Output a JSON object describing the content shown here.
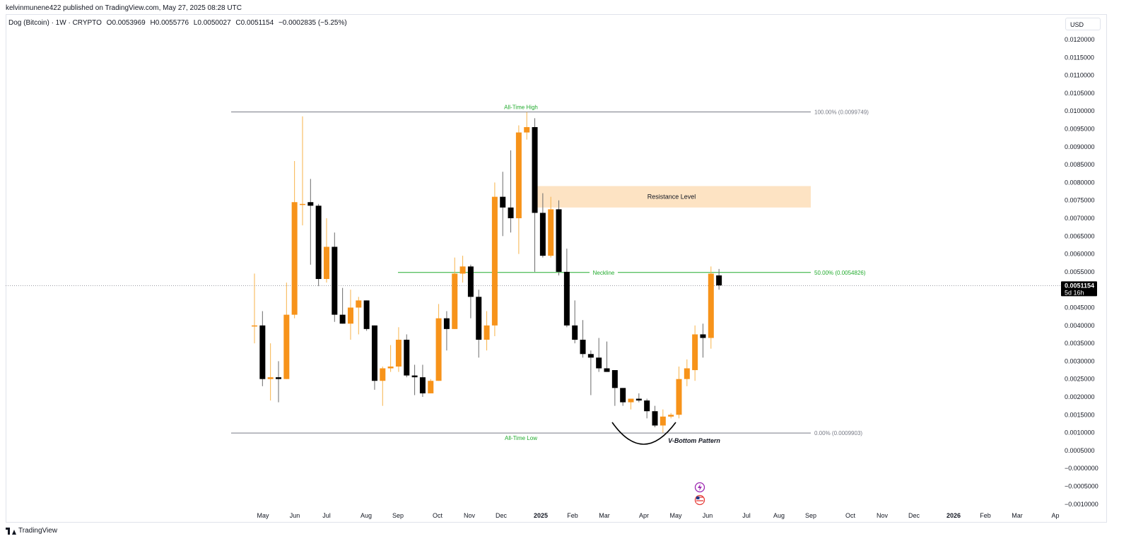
{
  "header": {
    "publisher_line": "kelvinmunene422 published on TradingView.com, May 27, 2025 08:28 UTC",
    "symbol": "Dog (Bitcoin) · 1W · CRYPTO",
    "open": "O0.0053969",
    "high": "H0.0055776",
    "low": "L0.0050027",
    "close": "C0.0051154",
    "change": "−0.0002835 (−5.25%)"
  },
  "currency_label": "USD",
  "footer": {
    "brand": "TradingView"
  },
  "colors": {
    "bull": "#f7931a",
    "bear": "#000000",
    "green": "#22ab2e",
    "grid_line": "#787b86",
    "zone": "#fde3c3"
  },
  "chart_data": {
    "type": "candlestick",
    "y_axis_ticks": [
      "0.0120000",
      "0.0115000",
      "0.0110000",
      "0.0105000",
      "0.0100000",
      "0.0095000",
      "0.0090000",
      "0.0085000",
      "0.0080000",
      "0.0075000",
      "0.0070000",
      "0.0065000",
      "0.0060000",
      "0.0055000",
      "0.0050000",
      "0.0045000",
      "0.0040000",
      "0.0035000",
      "0.0030000",
      "0.0025000",
      "0.0020000",
      "0.0015000",
      "0.0010000",
      "0.0005000",
      "−0.0000000",
      "−0.0005000",
      "−0.0010000"
    ],
    "x_axis_ticks": [
      "May",
      "Jun",
      "Jul",
      "Aug",
      "Sep",
      "Oct",
      "Nov",
      "Dec",
      "2025",
      "Feb",
      "Mar",
      "Apr",
      "May",
      "Jun",
      "Jul",
      "Aug",
      "Sep",
      "Oct",
      "Nov",
      "Dec",
      "2026",
      "Feb",
      "Mar",
      "Ap"
    ],
    "current_price": "0.0051154",
    "countdown": "5d 16h",
    "candles": [
      {
        "o": 0.004,
        "h": 0.00545,
        "l": 0.0035,
        "c": 0.004
      },
      {
        "o": 0.004,
        "h": 0.0044,
        "l": 0.0023,
        "c": 0.0025
      },
      {
        "o": 0.0025,
        "h": 0.0035,
        "l": 0.0019,
        "c": 0.00255
      },
      {
        "o": 0.00255,
        "h": 0.003,
        "l": 0.00185,
        "c": 0.0025
      },
      {
        "o": 0.0025,
        "h": 0.0052,
        "l": 0.0025,
        "c": 0.0043
      },
      {
        "o": 0.0043,
        "h": 0.0086,
        "l": 0.0042,
        "c": 0.00745
      },
      {
        "o": 0.0074,
        "h": 0.00985,
        "l": 0.0068,
        "c": 0.0074
      },
      {
        "o": 0.00745,
        "h": 0.0081,
        "l": 0.0057,
        "c": 0.00735
      },
      {
        "o": 0.00735,
        "h": 0.0074,
        "l": 0.0051,
        "c": 0.0053
      },
      {
        "o": 0.0053,
        "h": 0.007,
        "l": 0.0052,
        "c": 0.0062
      },
      {
        "o": 0.0062,
        "h": 0.0066,
        "l": 0.0041,
        "c": 0.0043
      },
      {
        "o": 0.0043,
        "h": 0.00505,
        "l": 0.00405,
        "c": 0.00405
      },
      {
        "o": 0.00405,
        "h": 0.005,
        "l": 0.0036,
        "c": 0.0045
      },
      {
        "o": 0.0045,
        "h": 0.0048,
        "l": 0.00375,
        "c": 0.0047
      },
      {
        "o": 0.0047,
        "h": 0.0047,
        "l": 0.00385,
        "c": 0.0039
      },
      {
        "o": 0.004,
        "h": 0.004,
        "l": 0.0022,
        "c": 0.00245
      },
      {
        "o": 0.00245,
        "h": 0.00285,
        "l": 0.00175,
        "c": 0.0028
      },
      {
        "o": 0.0028,
        "h": 0.00345,
        "l": 0.0027,
        "c": 0.00285
      },
      {
        "o": 0.00285,
        "h": 0.00395,
        "l": 0.0027,
        "c": 0.0036
      },
      {
        "o": 0.0036,
        "h": 0.00375,
        "l": 0.00255,
        "c": 0.0026
      },
      {
        "o": 0.0026,
        "h": 0.0029,
        "l": 0.00205,
        "c": 0.00255
      },
      {
        "o": 0.00255,
        "h": 0.0029,
        "l": 0.002,
        "c": 0.0021
      },
      {
        "o": 0.0021,
        "h": 0.0025,
        "l": 0.0021,
        "c": 0.00245
      },
      {
        "o": 0.00245,
        "h": 0.0046,
        "l": 0.00245,
        "c": 0.0042
      },
      {
        "o": 0.0042,
        "h": 0.0044,
        "l": 0.0033,
        "c": 0.0039
      },
      {
        "o": 0.0039,
        "h": 0.0059,
        "l": 0.0039,
        "c": 0.00545
      },
      {
        "o": 0.00545,
        "h": 0.00595,
        "l": 0.0052,
        "c": 0.00565
      },
      {
        "o": 0.00565,
        "h": 0.0057,
        "l": 0.0042,
        "c": 0.0048
      },
      {
        "o": 0.0048,
        "h": 0.005,
        "l": 0.0031,
        "c": 0.0036
      },
      {
        "o": 0.0036,
        "h": 0.0044,
        "l": 0.0033,
        "c": 0.004
      },
      {
        "o": 0.004,
        "h": 0.008,
        "l": 0.0037,
        "c": 0.0076
      },
      {
        "o": 0.0076,
        "h": 0.0083,
        "l": 0.0065,
        "c": 0.0073
      },
      {
        "o": 0.0073,
        "h": 0.0089,
        "l": 0.0066,
        "c": 0.007
      },
      {
        "o": 0.007,
        "h": 0.0096,
        "l": 0.006,
        "c": 0.0094
      },
      {
        "o": 0.0094,
        "h": 0.00997,
        "l": 0.0092,
        "c": 0.00955
      },
      {
        "o": 0.00955,
        "h": 0.0098,
        "l": 0.0055,
        "c": 0.00715
      },
      {
        "o": 0.00715,
        "h": 0.0077,
        "l": 0.0059,
        "c": 0.00595
      },
      {
        "o": 0.00595,
        "h": 0.0076,
        "l": 0.0059,
        "c": 0.00725
      },
      {
        "o": 0.00725,
        "h": 0.0075,
        "l": 0.0054,
        "c": 0.0055
      },
      {
        "o": 0.0055,
        "h": 0.00615,
        "l": 0.00395,
        "c": 0.004
      },
      {
        "o": 0.004,
        "h": 0.0047,
        "l": 0.0035,
        "c": 0.0036
      },
      {
        "o": 0.0036,
        "h": 0.00415,
        "l": 0.0031,
        "c": 0.0032
      },
      {
        "o": 0.0032,
        "h": 0.0033,
        "l": 0.00205,
        "c": 0.0031
      },
      {
        "o": 0.0031,
        "h": 0.00365,
        "l": 0.0027,
        "c": 0.0028
      },
      {
        "o": 0.0028,
        "h": 0.00355,
        "l": 0.0027,
        "c": 0.0027
      },
      {
        "o": 0.00275,
        "h": 0.00275,
        "l": 0.00175,
        "c": 0.00225
      },
      {
        "o": 0.00225,
        "h": 0.00225,
        "l": 0.00175,
        "c": 0.00185
      },
      {
        "o": 0.00185,
        "h": 0.00195,
        "l": 0.00165,
        "c": 0.00195
      },
      {
        "o": 0.00195,
        "h": 0.0021,
        "l": 0.00185,
        "c": 0.0019
      },
      {
        "o": 0.0019,
        "h": 0.00195,
        "l": 0.0014,
        "c": 0.0016
      },
      {
        "o": 0.0016,
        "h": 0.00175,
        "l": 0.00115,
        "c": 0.0012
      },
      {
        "o": 0.0012,
        "h": 0.00165,
        "l": 0.001,
        "c": 0.00145
      },
      {
        "o": 0.00145,
        "h": 0.00155,
        "l": 0.0014,
        "c": 0.0015
      },
      {
        "o": 0.0015,
        "h": 0.00285,
        "l": 0.0014,
        "c": 0.0025
      },
      {
        "o": 0.0025,
        "h": 0.00305,
        "l": 0.0023,
        "c": 0.0028
      },
      {
        "o": 0.00275,
        "h": 0.004,
        "l": 0.00245,
        "c": 0.00375
      },
      {
        "o": 0.00375,
        "h": 0.00405,
        "l": 0.0031,
        "c": 0.00365
      },
      {
        "o": 0.00365,
        "h": 0.00565,
        "l": 0.00335,
        "c": 0.00545
      },
      {
        "o": 0.0054,
        "h": 0.00558,
        "l": 0.005,
        "c": 0.00512
      }
    ],
    "annotations": {
      "all_time_high": {
        "label": "All-Time High",
        "fib_label": "100.00% (0.0099749)",
        "price": 0.0099749
      },
      "all_time_low": {
        "label": "All-Time Low",
        "fib_label": "0.00% (0.0009903)",
        "price": 0.0009903
      },
      "neckline": {
        "label": "Neckline",
        "fib_label": "50.00% (0.0054826)",
        "price": 0.0054826
      },
      "resistance": {
        "label": "Resistance Level",
        "price_low": 0.0073,
        "price_high": 0.0079
      },
      "pattern": {
        "label": "V-Bottom Pattern"
      }
    }
  }
}
